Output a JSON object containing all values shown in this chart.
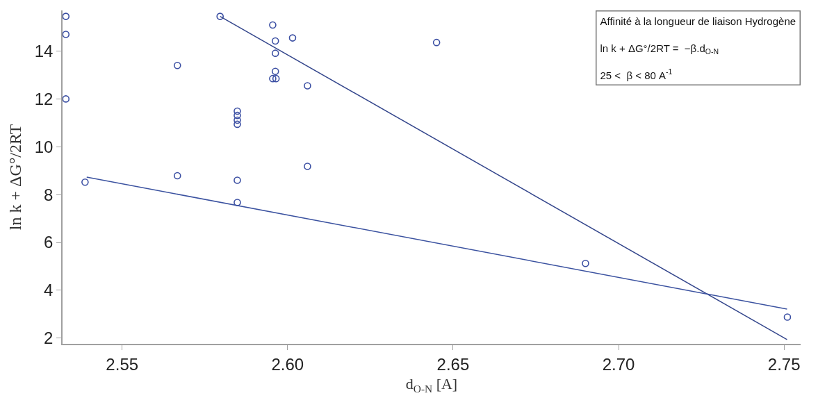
{
  "chart_data": {
    "type": "scatter",
    "xlabel": "d$_{O-N}$ [A]",
    "ylabel": "ln k + ΔG°/2RT",
    "annotations": [
      "Affinité à la longueur de liaison Hydrogène",
      "ln k + ΔG°/2RT =  −β.d$_{O-N}$",
      "25 <  β < 80 A$^{-1}$"
    ],
    "xlim": [
      2.532,
      2.755
    ],
    "ylim": [
      1.76,
      15.7
    ],
    "xticks": [
      2.55,
      {
        "value": 2.6,
        "label": "2.60"
      },
      2.65,
      {
        "value": 2.7,
        "label": "2.70"
      },
      2.75
    ],
    "yticks": [
      2,
      4,
      6,
      8,
      10,
      12,
      14
    ],
    "series": [
      {
        "color": "#3b4fa3",
        "marker": "circle",
        "x": [
          2.533,
          2.533,
          2.533,
          2.5388,
          2.5667,
          2.5667,
          2.5796,
          2.5848,
          2.5848,
          2.5848,
          2.5848,
          2.5848,
          2.5848,
          2.5955,
          2.5963,
          2.5963,
          2.5963,
          2.5955,
          2.5965,
          2.6015,
          2.606,
          2.606,
          2.645,
          2.69,
          2.751
        ],
        "values": [
          15.45,
          14.7,
          12.0,
          8.52,
          13.4,
          8.79,
          15.45,
          11.49,
          11.31,
          11.11,
          10.94,
          8.6,
          7.67,
          15.09,
          14.42,
          13.91,
          13.15,
          12.85,
          12.85,
          14.55,
          12.55,
          9.18,
          14.36,
          5.12,
          2.88
        ]
      },
      {
        "type": "line",
        "color": "#34468c",
        "marker": "none",
        "line_style": "solid",
        "x": [
          2.5796,
          2.7509
        ],
        "values": [
          15.45,
          1.94
        ]
      },
      {
        "type": "line",
        "color": "#3b52a0",
        "marker": "none",
        "line_style": "solid",
        "x": [
          2.5393,
          2.7509
        ],
        "values": [
          8.73,
          3.21
        ]
      }
    ]
  }
}
